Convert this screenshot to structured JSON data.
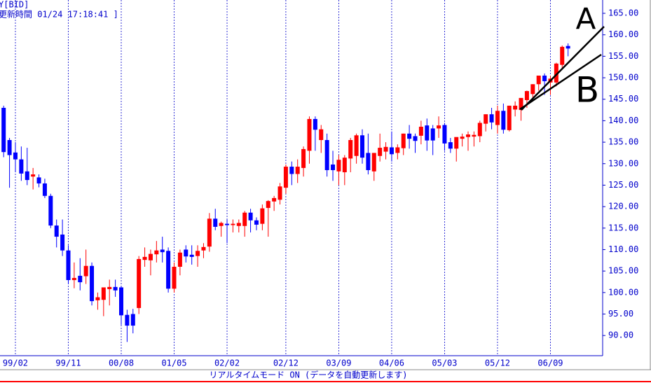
{
  "chart_data": {
    "type": "candlestick",
    "title": "Y[BID]",
    "subtitle": "更新時間 01/24 17:18:41 ]",
    "status": "リアルタイムモード ON (データを自動更新します)",
    "annotations": [
      "A",
      "B"
    ],
    "up_color": "#ff0000",
    "down_color": "#0000ff",
    "grid": true,
    "categories": [
      null,
      null,
      "99/02",
      null,
      null,
      null,
      null,
      null,
      null,
      null,
      null,
      "99/11",
      null,
      null,
      null,
      null,
      null,
      null,
      null,
      null,
      "00/08",
      null,
      null,
      null,
      null,
      null,
      null,
      null,
      null,
      "01/05",
      null,
      null,
      null,
      null,
      null,
      null,
      null,
      null,
      "02/02",
      null,
      null,
      null,
      null,
      null,
      null,
      null,
      null,
      null,
      "02/12",
      null,
      null,
      null,
      null,
      null,
      null,
      null,
      null,
      "03/09",
      null,
      null,
      null,
      null,
      null,
      null,
      null,
      null,
      "04/06",
      null,
      null,
      null,
      null,
      null,
      null,
      null,
      null,
      "05/03",
      null,
      null,
      null,
      null,
      null,
      null,
      null,
      null,
      "05/12",
      null,
      null,
      null,
      null,
      null,
      null,
      null,
      null,
      "06/09",
      null,
      null,
      null
    ],
    "open": [
      143,
      135.5,
      132.6,
      131,
      128.2,
      127,
      126.8,
      125.4,
      122.5,
      115.6,
      113.5,
      109.8,
      102.9,
      103.9,
      103.8,
      106.2,
      98.2,
      98.3,
      100.8,
      101.3,
      101.2,
      94.8,
      95,
      96.4,
      107.6,
      107.5,
      108.9,
      110,
      109.7,
      100.9,
      106,
      110,
      108.8,
      108.5,
      109.8,
      110.7,
      117.2,
      115.5,
      116,
      115.7,
      115.5,
      115.5,
      118.6,
      116.8,
      116,
      119.7,
      121.2,
      121.6,
      124.4,
      129.3,
      127.6,
      129,
      133,
      140.4,
      135.5,
      135.5,
      129.8,
      128.2,
      128,
      131.2,
      131.8,
      136.6,
      132.5,
      128.2,
      131.8,
      132.8,
      133.8,
      132.5,
      133.6,
      137,
      136.4,
      136.5,
      138.9,
      138.2,
      138.2,
      139,
      135,
      133.5,
      135.8,
      136.2,
      136.3,
      136.4,
      139.3,
      141.5,
      139,
      142.3,
      137.8,
      142.6,
      142.5,
      144.8,
      146.2,
      148.5,
      150.5,
      148.9,
      148.9,
      153,
      157.4
    ],
    "high": [
      143.5,
      136,
      135,
      134,
      133.7,
      129,
      127.5,
      126.5,
      123,
      117,
      117,
      111,
      107,
      108,
      110,
      107,
      100,
      101,
      103,
      103,
      101.5,
      96,
      96.2,
      108.5,
      110.5,
      110,
      112,
      113,
      110.5,
      107,
      110,
      111,
      111,
      111,
      111.5,
      118.5,
      119.5,
      116.5,
      117,
      117,
      117,
      119,
      119.5,
      117.5,
      120.5,
      121.5,
      122.5,
      125.5,
      129.8,
      130.5,
      131,
      134,
      141,
      141,
      139,
      137,
      133,
      132,
      132,
      136,
      137,
      138,
      137,
      132.5,
      137,
      135,
      137.5,
      134.5,
      137,
      139,
      137,
      140,
      140.5,
      139,
      141,
      139.5,
      136,
      136,
      137,
      137.5,
      137.5,
      140,
      141.5,
      143,
      143.5,
      144,
      143.5,
      144.5,
      145,
      147,
      148.5,
      150.5,
      151,
      150.5,
      153.5,
      157.5,
      158
    ],
    "low": [
      131.5,
      124.4,
      128,
      126,
      125,
      124,
      124.5,
      122,
      115,
      110.5,
      108.5,
      102,
      101,
      100.5,
      102,
      97,
      96,
      94.5,
      97,
      99,
      92.5,
      88.5,
      90.5,
      95,
      106,
      104,
      107,
      107,
      100,
      100,
      104,
      107,
      106.5,
      106,
      108,
      109.5,
      114.5,
      113,
      111.5,
      114,
      114,
      113,
      114,
      114.5,
      114.5,
      113,
      119,
      120.5,
      123,
      125,
      125.5,
      127,
      130,
      133,
      132.5,
      127,
      126,
      125,
      125,
      128,
      130,
      130,
      127.5,
      126,
      130.5,
      131,
      130.5,
      131,
      132,
      133.5,
      132.5,
      134.5,
      133,
      132,
      136,
      133,
      132.5,
      130.5,
      134,
      133,
      134,
      135,
      137.5,
      138,
      137,
      137,
      137.5,
      141,
      140,
      143,
      145,
      147,
      146,
      146,
      148,
      152,
      155
    ],
    "close": [
      132.7,
      132,
      131,
      127.7,
      126.2,
      127.5,
      125.4,
      122.5,
      115.6,
      113,
      109.8,
      102.9,
      103.4,
      102.4,
      106.2,
      98,
      98.9,
      101.2,
      101.3,
      100.5,
      94.7,
      92.3,
      92.3,
      107.8,
      108.3,
      109,
      109.8,
      109.4,
      100.9,
      106,
      109.3,
      108.4,
      108.3,
      109.7,
      110.6,
      117.2,
      115.3,
      116.2,
      115.7,
      116,
      116.2,
      118.6,
      116.8,
      115.8,
      119.6,
      121.3,
      122,
      124.7,
      129.3,
      127.6,
      129.3,
      133.4,
      140.4,
      137.9,
      138,
      128.5,
      128.5,
      130.9,
      131.4,
      135.5,
      136.6,
      131.4,
      128.5,
      132.5,
      133.7,
      133.9,
      132.2,
      133.8,
      137,
      135.8,
      135.3,
      138.6,
      135.4,
      135.4,
      138.9,
      134.7,
      133.5,
      136.2,
      136.3,
      136.8,
      136.7,
      139.5,
      141.5,
      139.6,
      142.3,
      137.9,
      143.5,
      143.5,
      145.3,
      146.9,
      148.5,
      150.5,
      149.2,
      149.8,
      153.3,
      157.2,
      156.8
    ],
    "ylim": [
      85.3,
      168.1
    ],
    "yticks": [
      {
        "value": 90,
        "label": "90.00"
      },
      {
        "value": 95,
        "label": "95.00"
      },
      {
        "value": 100,
        "label": "100.00"
      },
      {
        "value": 105,
        "label": "105.00"
      },
      {
        "value": 110,
        "label": "110.00"
      },
      {
        "value": 115,
        "label": "115.00"
      },
      {
        "value": 120,
        "label": "120.00"
      },
      {
        "value": 125,
        "label": "125.00"
      },
      {
        "value": 130,
        "label": "130.00"
      },
      {
        "value": 135,
        "label": "135.00"
      },
      {
        "value": 140,
        "label": "140.00"
      },
      {
        "value": 145,
        "label": "145.00"
      },
      {
        "value": 150,
        "label": "150.00"
      },
      {
        "value": 155,
        "label": "155.00"
      },
      {
        "value": 160,
        "label": "160.00"
      },
      {
        "value": 165,
        "label": "165.00"
      }
    ]
  }
}
